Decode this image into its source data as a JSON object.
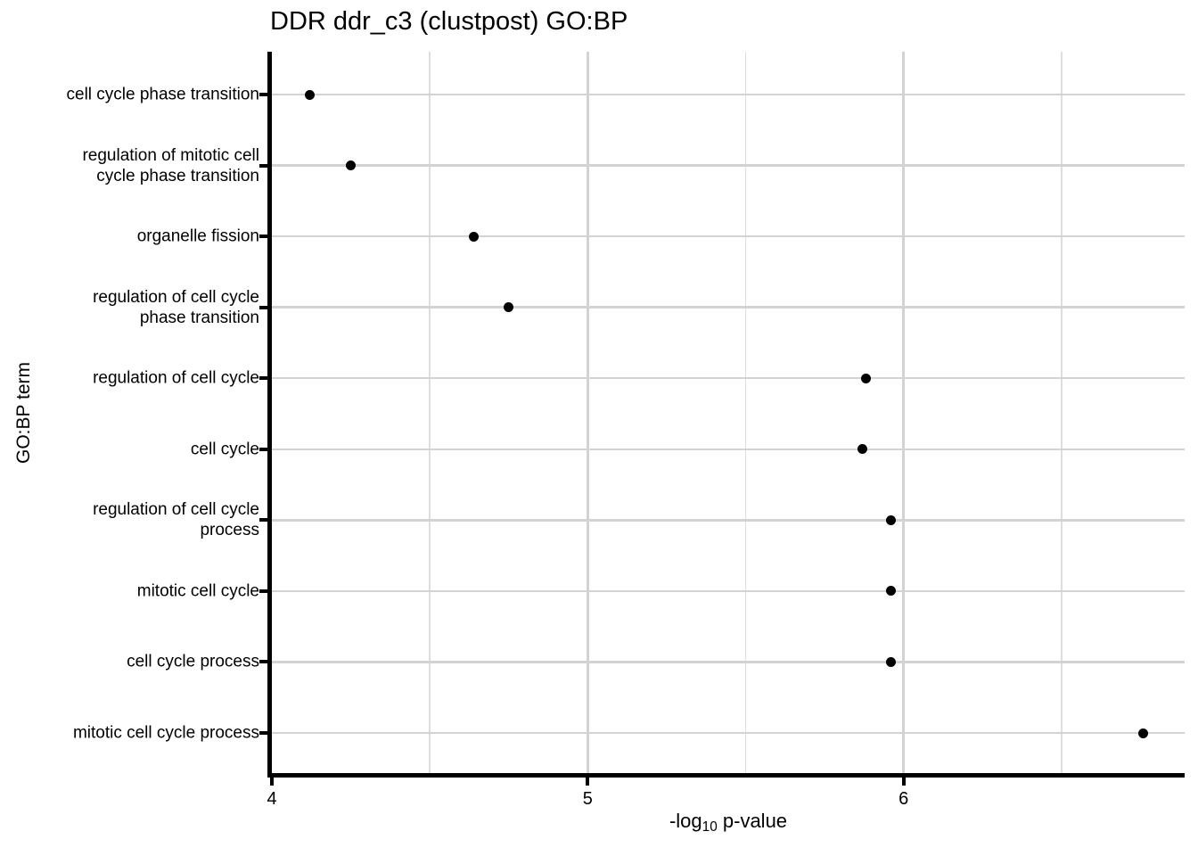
{
  "title": "DDR ddr_c3 (clustpost) GO:BP",
  "chart_data": {
    "type": "scatter",
    "subtype": "horizontal-dot-plot",
    "title": "DDR ddr_c3 (clustpost) GO:BP",
    "xlabel_text": "-log10 p-value",
    "xlabel": {
      "prefix": "-log",
      "subscript": "10",
      "suffix": " p-value"
    },
    "ylabel": "GO:BP term",
    "categories": [
      "cell cycle phase transition",
      "regulation of mitotic cell\ncycle phase transition",
      "organelle fission",
      "regulation of cell cycle\nphase transition",
      "regulation of cell cycle",
      "cell cycle",
      "regulation of cell cycle\nprocess",
      "mitotic cell cycle",
      "cell cycle process",
      "mitotic cell cycle process"
    ],
    "values": [
      4.12,
      4.25,
      4.64,
      4.75,
      5.88,
      5.87,
      5.96,
      5.96,
      5.96,
      6.76
    ],
    "xlim": [
      4,
      6.89
    ],
    "x_major_ticks": [
      4,
      5,
      6
    ],
    "x_minor_gridlines": [
      4.5,
      5.5,
      6.5
    ],
    "grid": "horizontal majors per category; vertical majors and minors; no top/right border",
    "legend": false,
    "colors": {
      "point": "#000000",
      "axis": "#000000",
      "text": "#000000",
      "grid_major": "#d3d3d3",
      "grid_minor": "#dedede",
      "background": "#ffffff"
    }
  }
}
